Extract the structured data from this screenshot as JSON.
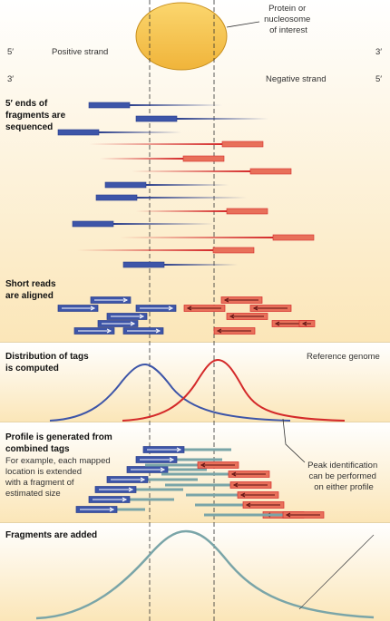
{
  "labels": {
    "protein_line1": "Protein or",
    "protein_line2": "nucleosome",
    "protein_line3": "of interest",
    "five_prime": "5′",
    "three_prime": "3′",
    "positive_strand": "Positive strand",
    "negative_strand": "Negative strand",
    "ends_line1": "5′ ends of",
    "ends_line2": "fragments are",
    "ends_line3": "sequenced",
    "reads_line1": "Short reads",
    "reads_line2": "are aligned",
    "dist_line1": "Distribution of tags",
    "dist_line2": "is computed",
    "reference_genome": "Reference genome",
    "profile_line1": "Profile is generated from",
    "profile_line2": "combined tags",
    "example_line1": "For example, each mapped",
    "example_line2": "location is extended",
    "example_line3": "with a fragment of",
    "example_line4": "estimated size",
    "peak_line1": "Peak identification",
    "peak_line2": "can be performed",
    "peak_line3": "on either profile",
    "fragments_added": "Fragments are added"
  },
  "colors": {
    "blue": "#2b3f8c",
    "blue_fill": "#3d55a8",
    "red": "#d42a2a",
    "red_fill": "#e8705a",
    "teal": "#7aa5a8",
    "protein": "#f4c04e"
  }
}
